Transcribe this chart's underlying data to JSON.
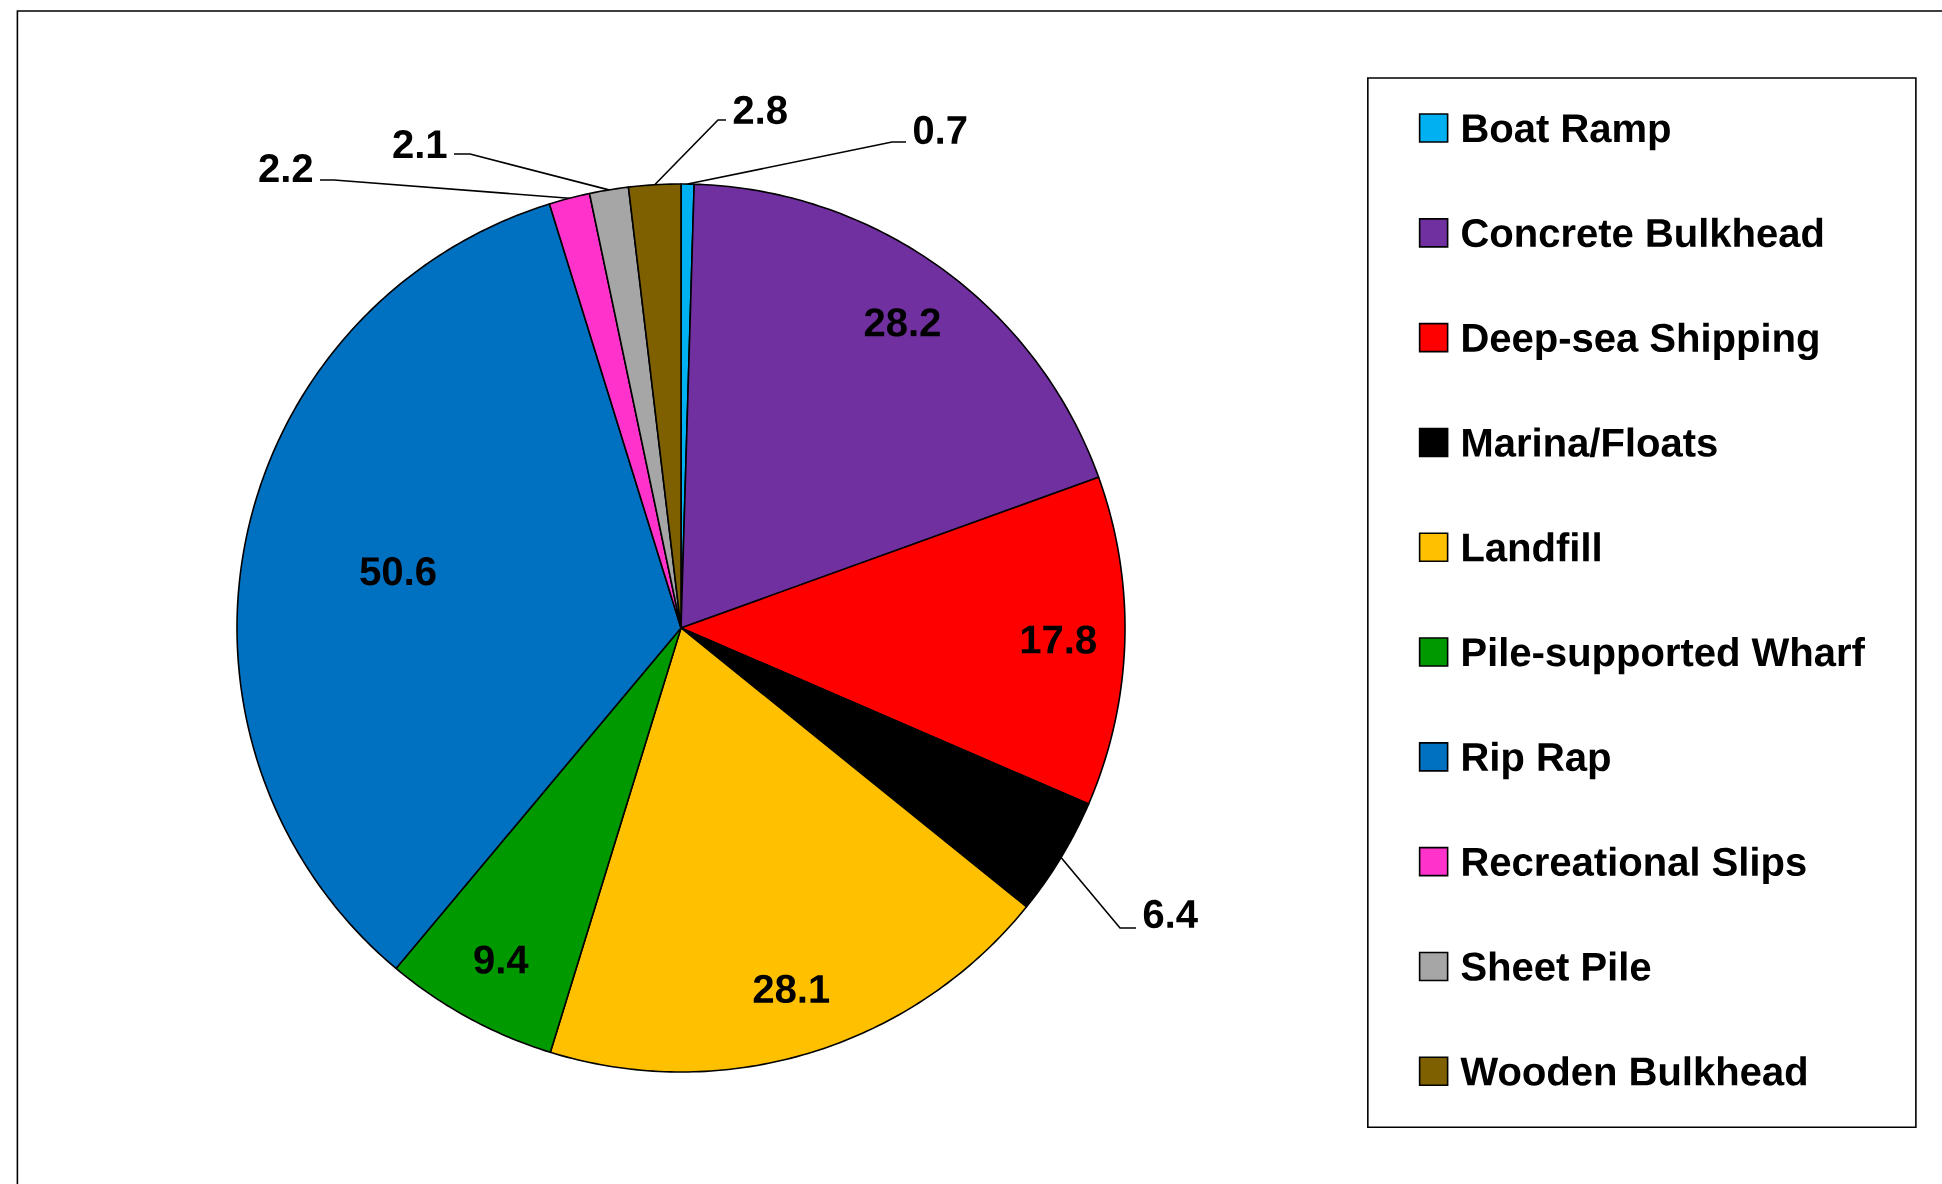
{
  "chart_data": {
    "type": "pie",
    "categories": [
      "Boat Ramp",
      "Concrete Bulkhead",
      "Deep-sea Shipping",
      "Marina/Floats",
      "Landfill",
      "Pile-supported Wharf",
      "Rip Rap",
      "Recreational Slips",
      "Sheet Pile",
      "Wooden Bulkhead"
    ],
    "values": [
      0.7,
      28.2,
      17.8,
      6.4,
      28.1,
      9.4,
      50.6,
      2.2,
      2.1,
      2.8
    ],
    "colors": [
      "#00b0f0",
      "#7030a0",
      "#ff0000",
      "#000000",
      "#ffc000",
      "#009900",
      "#0070c0",
      "#ff33cc",
      "#a6a6a6",
      "#7f6000"
    ],
    "data_labels": true,
    "legend": "right"
  }
}
